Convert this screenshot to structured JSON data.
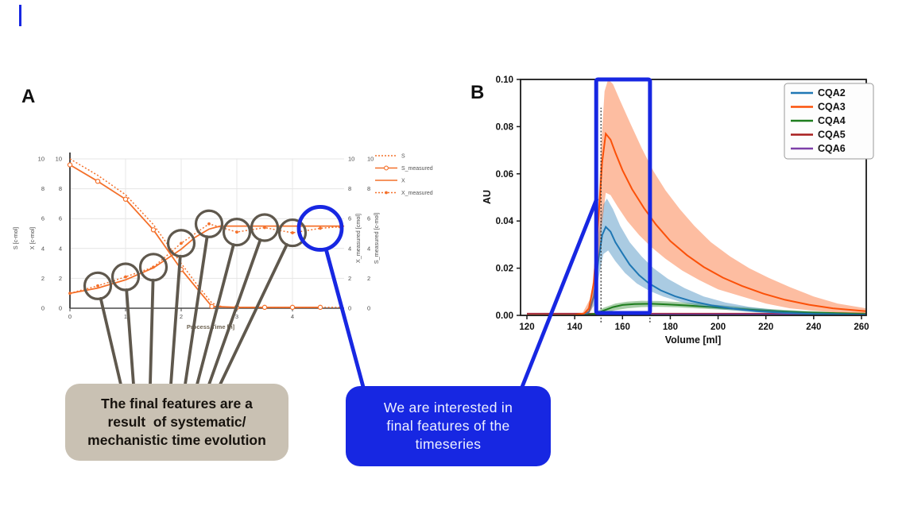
{
  "panels": {
    "a_label": "A",
    "b_label": "B"
  },
  "annotations": {
    "gray_box": "The final features are a\nresult  of systematic/\nmechanistic time evolution",
    "blue_box": "We are interested in\nfinal features of the\ntimeseries",
    "accent_blue": "#1727e2",
    "connector_gray": "#5f584d",
    "gray_box_bg": "#c9c1b3"
  },
  "chart_data": [
    {
      "id": "panelA",
      "type": "line",
      "title": "",
      "xlabel": "Process Time [h]",
      "ylabel_left": "S [c-mol]",
      "ylabel_left2": "X [c-mol]",
      "ylabel_right": "X_measured [cmol]",
      "ylabel_right2": "S_measured [c-mol]",
      "xlim": [
        0,
        5
      ],
      "ylim": [
        0,
        10
      ],
      "xticks": [
        0,
        1,
        2,
        3,
        4
      ],
      "yticks": [
        0,
        2,
        4,
        6,
        8,
        10
      ],
      "grid": true,
      "legend_position": "upper right outside",
      "color": "#f4702a",
      "series": [
        {
          "name": "S",
          "style": "dotted",
          "marker": "none",
          "points": [
            [
              0,
              10
            ],
            [
              0.5,
              8.9
            ],
            [
              1,
              7.6
            ],
            [
              1.5,
              5.6
            ],
            [
              2,
              3.0
            ],
            [
              2.3,
              1.5
            ],
            [
              2.55,
              0.35
            ],
            [
              2.75,
              0.08
            ],
            [
              3,
              0.06
            ],
            [
              3.5,
              0.06
            ],
            [
              4,
              0.06
            ],
            [
              4.5,
              0.06
            ],
            [
              4.93,
              0.06
            ]
          ]
        },
        {
          "name": "S_measured",
          "style": "solid",
          "marker": "ring",
          "points": [
            [
              0,
              9.6
            ],
            [
              0.5,
              8.5
            ],
            [
              1,
              7.3
            ],
            [
              1.5,
              5.25
            ],
            [
              2,
              2.6
            ],
            [
              2.55,
              0.12
            ],
            [
              3,
              0.06
            ],
            [
              3.5,
              0.06
            ],
            [
              4,
              0.06
            ],
            [
              4.5,
              0.06
            ]
          ]
        },
        {
          "name": "X",
          "style": "solid",
          "marker": "none",
          "points": [
            [
              0,
              1
            ],
            [
              0.5,
              1.35
            ],
            [
              1,
              1.9
            ],
            [
              1.5,
              2.7
            ],
            [
              2,
              3.95
            ],
            [
              2.25,
              4.75
            ],
            [
              2.5,
              5.3
            ],
            [
              2.7,
              5.5
            ],
            [
              3,
              5.5
            ],
            [
              3.5,
              5.5
            ],
            [
              4,
              5.5
            ],
            [
              4.5,
              5.5
            ],
            [
              4.93,
              5.5
            ]
          ]
        },
        {
          "name": "X_measured",
          "style": "dotted",
          "marker": "dot",
          "points": [
            [
              0,
              1
            ],
            [
              0.5,
              1.5
            ],
            [
              1,
              2.1
            ],
            [
              1.5,
              2.75
            ],
            [
              2,
              4.35
            ],
            [
              2.5,
              5.65
            ],
            [
              3,
              5.1
            ],
            [
              3.5,
              5.4
            ],
            [
              4,
              5.05
            ],
            [
              4.5,
              5.35
            ],
            [
              4.85,
              5.45
            ]
          ]
        }
      ],
      "highlight_circle_times": [
        0.5,
        1,
        1.5,
        2,
        2.5,
        3,
        3.5,
        4
      ],
      "blue_circle_time": 4.5
    },
    {
      "id": "panelB",
      "type": "line",
      "title": "",
      "xlabel": "Volume [ml]",
      "ylabel": "AU",
      "xlim": [
        120,
        262
      ],
      "ylim": [
        -0.003,
        0.1
      ],
      "xticks": [
        120,
        140,
        160,
        180,
        200,
        220,
        240,
        260
      ],
      "yticks": [
        0,
        0.02,
        0.04,
        0.06,
        0.08,
        0.1
      ],
      "ytick_labels": [
        "0.00",
        "0.02",
        "0.04",
        "0.06",
        "0.08",
        "0.10"
      ],
      "legend_position": "upper right",
      "highlight_rect": {
        "x0": 149,
        "x1": 171.5,
        "y0": 0.001,
        "y1": 0.1
      },
      "vlines": [
        {
          "x": 151,
          "y0": -0.003,
          "y1": 0.088
        },
        {
          "x": 171.5,
          "y0": -0.003,
          "y1": 0.004
        }
      ],
      "draw_order": [
        "CQA5",
        "CQA6",
        "CQA4",
        "CQA2",
        "CQA3"
      ],
      "series": [
        {
          "name": "CQA2",
          "color": "#1f77b4",
          "points": [
            [
              120,
              0.0002
            ],
            [
              143,
              0.0002
            ],
            [
              146,
              0.0015
            ],
            [
              148,
              0.008
            ],
            [
              150,
              0.024
            ],
            [
              151.5,
              0.034
            ],
            [
              153,
              0.0375
            ],
            [
              155,
              0.0355
            ],
            [
              157,
              0.031
            ],
            [
              160,
              0.0262
            ],
            [
              163,
              0.0215
            ],
            [
              167,
              0.017
            ],
            [
              171,
              0.0136
            ],
            [
              176,
              0.0106
            ],
            [
              182,
              0.0081
            ],
            [
              189,
              0.006
            ],
            [
              197,
              0.0043
            ],
            [
              206,
              0.0029
            ],
            [
              216,
              0.0018
            ],
            [
              227,
              0.0011
            ],
            [
              240,
              0.0006
            ],
            [
              262,
              0.0003
            ]
          ],
          "band_upper": [
            [
              145,
              0.001
            ],
            [
              148,
              0.014
            ],
            [
              150,
              0.035
            ],
            [
              152,
              0.047
            ],
            [
              153.5,
              0.0495
            ],
            [
              156,
              0.045
            ],
            [
              159,
              0.038
            ],
            [
              163,
              0.031
            ],
            [
              168,
              0.025
            ],
            [
              173,
              0.02
            ],
            [
              179,
              0.0155
            ],
            [
              186,
              0.0115
            ],
            [
              194,
              0.008
            ],
            [
              203,
              0.0055
            ],
            [
              213,
              0.0036
            ],
            [
              225,
              0.0022
            ],
            [
              240,
              0.0012
            ],
            [
              262,
              0.0006
            ]
          ],
          "band_lower": [
            [
              145,
              0
            ],
            [
              148,
              0.004
            ],
            [
              150,
              0.016
            ],
            [
              152,
              0.026
            ],
            [
              154,
              0.0275
            ],
            [
              157,
              0.023
            ],
            [
              161,
              0.018
            ],
            [
              166,
              0.0135
            ],
            [
              171,
              0.0105
            ],
            [
              177,
              0.008
            ],
            [
              184,
              0.0058
            ],
            [
              192,
              0.004
            ],
            [
              201,
              0.0026
            ],
            [
              211,
              0.0016
            ],
            [
              223,
              0.0009
            ],
            [
              240,
              0.0004
            ],
            [
              262,
              0.0002
            ]
          ]
        },
        {
          "name": "CQA3",
          "color": "#fb5109",
          "points": [
            [
              120,
              0.0002
            ],
            [
              140,
              0.0002
            ],
            [
              144,
              0.0008
            ],
            [
              146,
              0.003
            ],
            [
              148,
              0.014
            ],
            [
              150,
              0.042
            ],
            [
              151.5,
              0.065
            ],
            [
              153,
              0.077
            ],
            [
              155,
              0.0745
            ],
            [
              157,
              0.069
            ],
            [
              160,
              0.0615
            ],
            [
              164,
              0.0535
            ],
            [
              169,
              0.0455
            ],
            [
              174,
              0.0385
            ],
            [
              180,
              0.0315
            ],
            [
              187,
              0.0255
            ],
            [
              194,
              0.0205
            ],
            [
              202,
              0.016
            ],
            [
              210,
              0.0125
            ],
            [
              219,
              0.0092
            ],
            [
              228,
              0.0066
            ],
            [
              238,
              0.0045
            ],
            [
              248,
              0.003
            ],
            [
              262,
              0.0018
            ]
          ],
          "band_upper": [
            [
              143,
              0.0005
            ],
            [
              147,
              0.008
            ],
            [
              149,
              0.03
            ],
            [
              151,
              0.07
            ],
            [
              152.5,
              0.095
            ],
            [
              154,
              0.1
            ],
            [
              156,
              0.098
            ],
            [
              159,
              0.091
            ],
            [
              163,
              0.082
            ],
            [
              168,
              0.071
            ],
            [
              173,
              0.061
            ],
            [
              178,
              0.053
            ],
            [
              184,
              0.045
            ],
            [
              190,
              0.038
            ],
            [
              197,
              0.031
            ],
            [
              205,
              0.025
            ],
            [
              213,
              0.02
            ],
            [
              221,
              0.016
            ],
            [
              230,
              0.012
            ],
            [
              240,
              0.008
            ],
            [
              250,
              0.005
            ],
            [
              262,
              0.003
            ]
          ],
          "band_lower": [
            [
              143,
              0
            ],
            [
              147,
              0.002
            ],
            [
              149,
              0.012
            ],
            [
              151,
              0.035
            ],
            [
              153,
              0.052
            ],
            [
              155,
              0.051
            ],
            [
              158,
              0.046
            ],
            [
              162,
              0.04
            ],
            [
              167,
              0.034
            ],
            [
              172,
              0.029
            ],
            [
              178,
              0.024
            ],
            [
              185,
              0.019
            ],
            [
              192,
              0.015
            ],
            [
              200,
              0.011
            ],
            [
              210,
              0.008
            ],
            [
              220,
              0.005
            ],
            [
              230,
              0.003
            ],
            [
              240,
              0.002
            ],
            [
              250,
              0.0012
            ],
            [
              262,
              0.0008
            ]
          ]
        },
        {
          "name": "CQA4",
          "color": "#1e7d1e",
          "points": [
            [
              120,
              0.0001
            ],
            [
              145,
              0.0002
            ],
            [
              149,
              0.0008
            ],
            [
              152,
              0.002
            ],
            [
              156,
              0.0035
            ],
            [
              160,
              0.0044
            ],
            [
              165,
              0.0048
            ],
            [
              172,
              0.0049
            ],
            [
              179,
              0.0046
            ],
            [
              187,
              0.0042
            ],
            [
              196,
              0.0036
            ],
            [
              206,
              0.0029
            ],
            [
              216,
              0.0023
            ],
            [
              227,
              0.0017
            ],
            [
              239,
              0.0012
            ],
            [
              250,
              0.0009
            ],
            [
              262,
              0.0007
            ]
          ],
          "band_upper": [
            [
              148,
              0.001
            ],
            [
              152,
              0.0032
            ],
            [
              157,
              0.005
            ],
            [
              162,
              0.0058
            ],
            [
              168,
              0.0062
            ],
            [
              175,
              0.0061
            ],
            [
              183,
              0.0057
            ],
            [
              192,
              0.005
            ],
            [
              202,
              0.0042
            ],
            [
              212,
              0.0034
            ],
            [
              223,
              0.0026
            ],
            [
              235,
              0.0019
            ],
            [
              248,
              0.0014
            ],
            [
              262,
              0.0011
            ]
          ],
          "band_lower": [
            [
              148,
              0
            ],
            [
              152,
              0.001
            ],
            [
              157,
              0.0022
            ],
            [
              162,
              0.003
            ],
            [
              168,
              0.0035
            ],
            [
              175,
              0.0036
            ],
            [
              183,
              0.0034
            ],
            [
              192,
              0.0029
            ],
            [
              202,
              0.0024
            ],
            [
              212,
              0.0019
            ],
            [
              223,
              0.0014
            ],
            [
              235,
              0.001
            ],
            [
              248,
              0.0007
            ],
            [
              262,
              0.0005
            ]
          ]
        },
        {
          "name": "CQA5",
          "color": "#a81d1d",
          "points": [
            [
              120,
              0.0007
            ],
            [
              262,
              0.0007
            ]
          ]
        },
        {
          "name": "CQA6",
          "color": "#7d3fa8",
          "points": [
            [
              120,
              0.0004
            ],
            [
              262,
              0.0004
            ]
          ]
        }
      ]
    }
  ]
}
